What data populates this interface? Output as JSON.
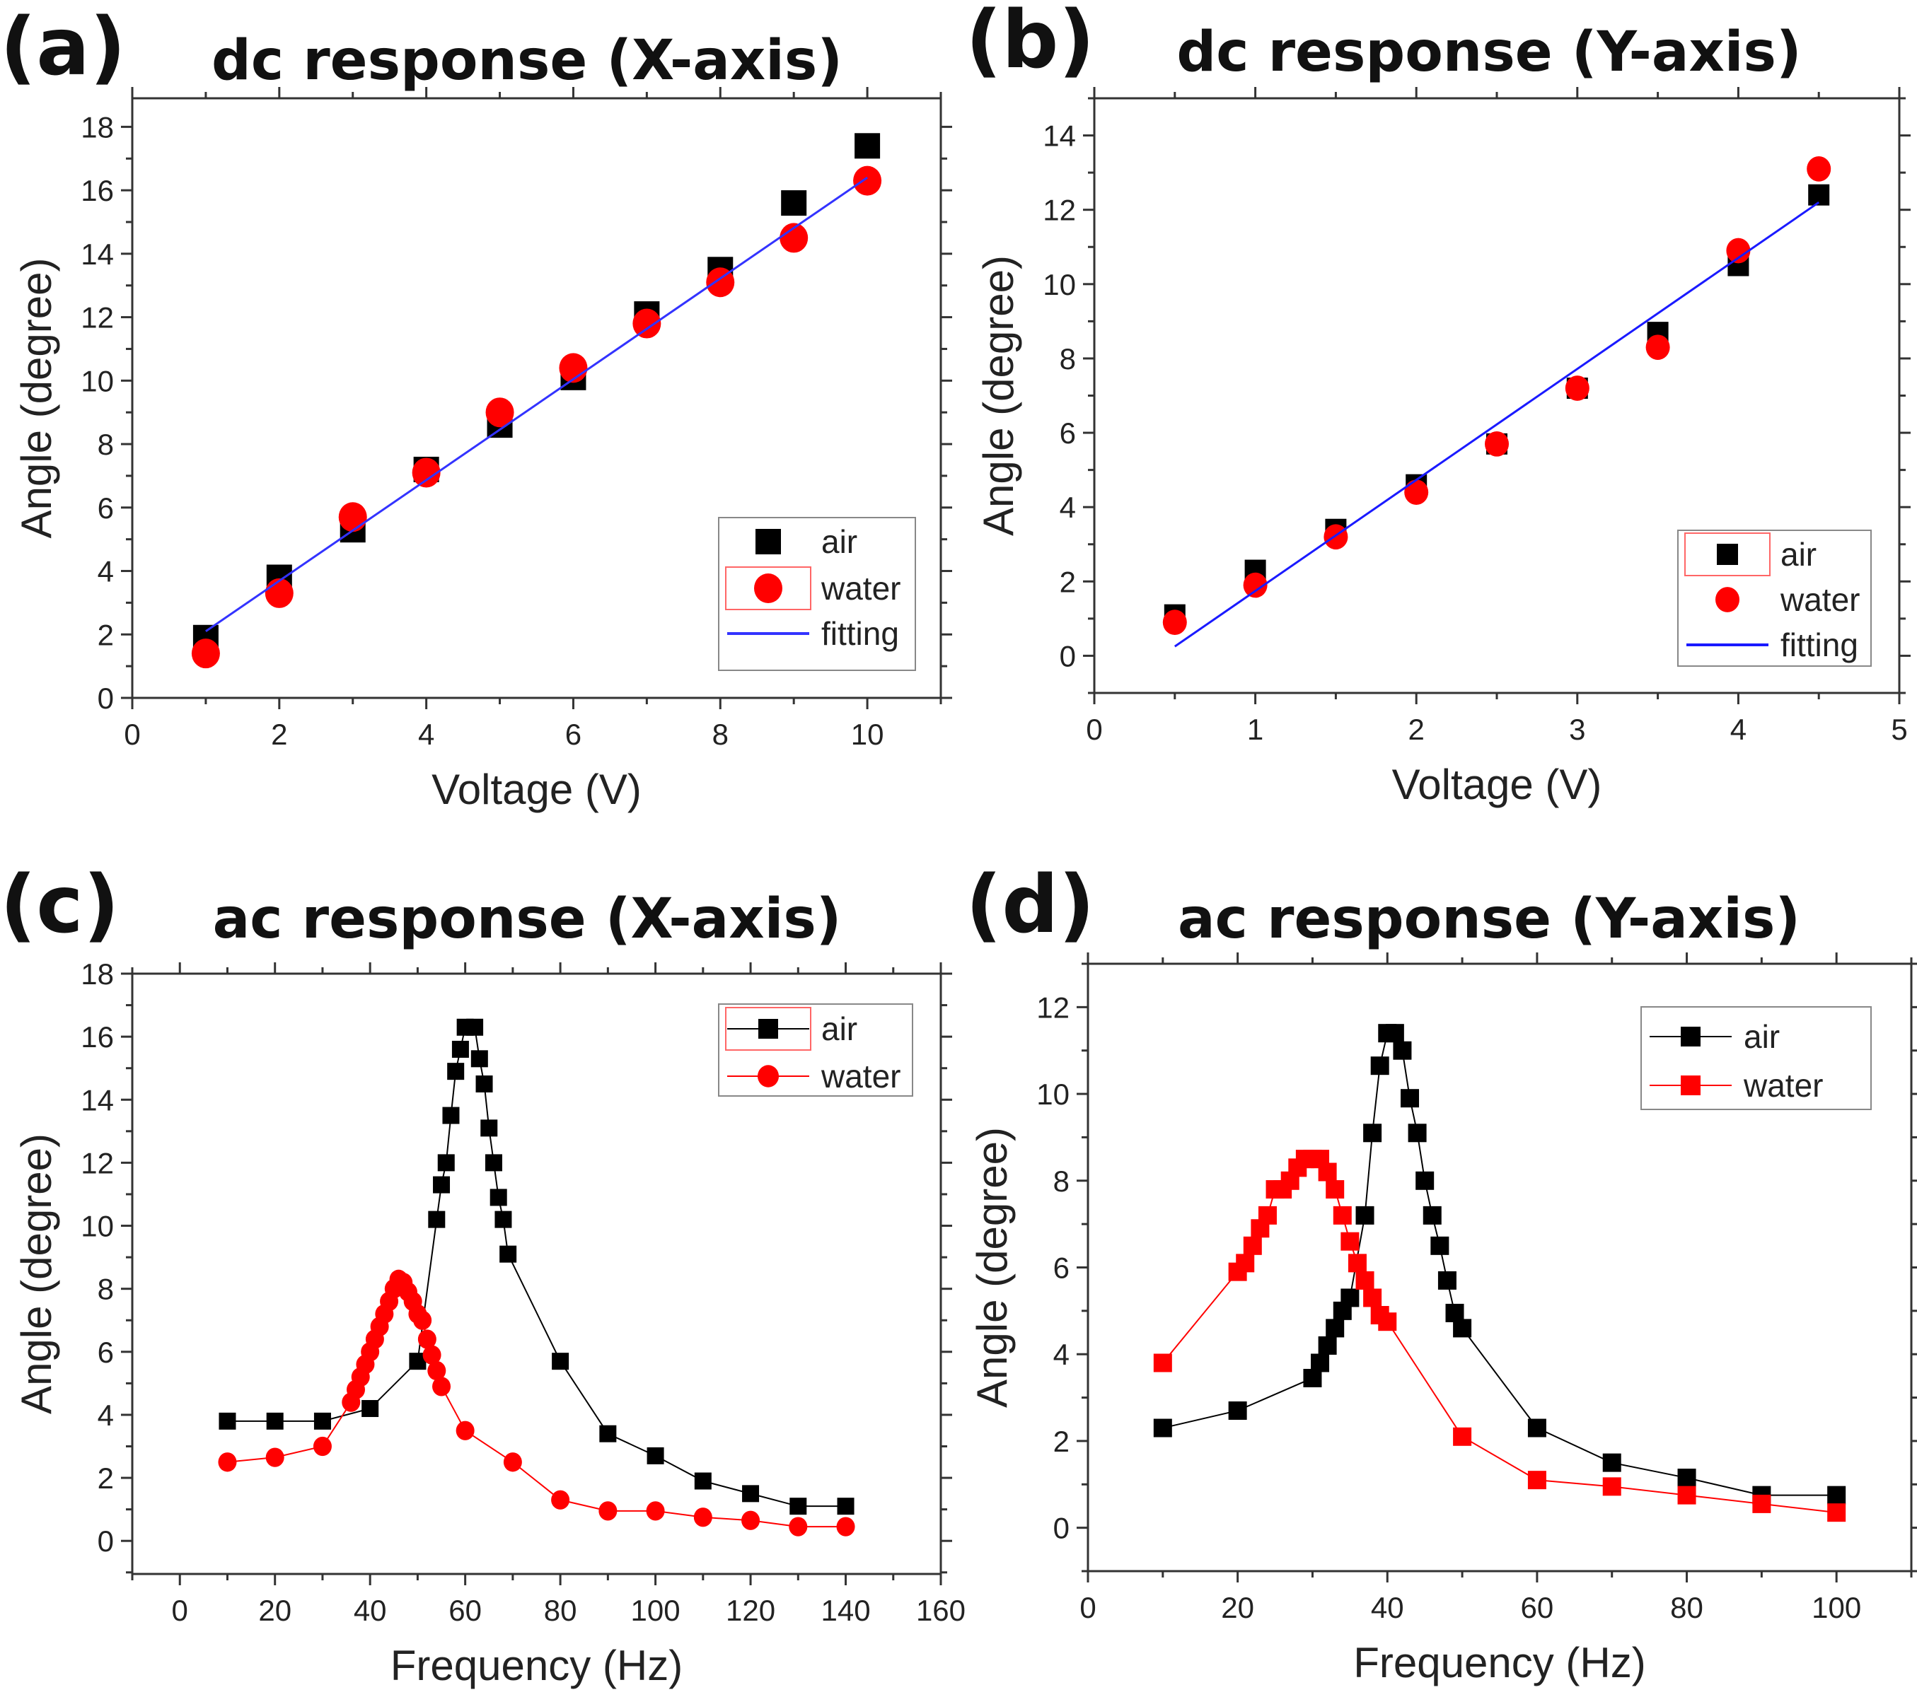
{
  "chart_data": [
    {
      "type": "scatter",
      "label": "(a)",
      "title": "dc response (X-axis)",
      "xlabel": "Voltage (V)",
      "ylabel": "Angle (degree)",
      "xlim": [
        0,
        11
      ],
      "ylim": [
        0,
        18.9
      ],
      "xticks": [
        0,
        2,
        4,
        6,
        8,
        10
      ],
      "yticks": [
        0,
        2,
        4,
        6,
        8,
        10,
        12,
        14,
        16,
        18
      ],
      "legend_position": "bottom-right",
      "series": [
        {
          "name": "air",
          "marker": "square",
          "color": "#000000",
          "line": false,
          "x": [
            1,
            2,
            3,
            4,
            5,
            6,
            7,
            8,
            9,
            10
          ],
          "y": [
            1.9,
            3.8,
            5.3,
            7.2,
            8.6,
            10.1,
            12.1,
            13.5,
            15.6,
            17.4
          ]
        },
        {
          "name": "water",
          "marker": "circle",
          "color": "#ff0000",
          "line": false,
          "x": [
            1,
            2,
            3,
            4,
            5,
            6,
            7,
            8,
            9,
            10
          ],
          "y": [
            1.4,
            3.3,
            5.7,
            7.1,
            9.0,
            10.4,
            11.8,
            13.1,
            14.5,
            16.3
          ]
        },
        {
          "name": "fitting",
          "marker": "none",
          "color": "#3333ff",
          "line": true,
          "x": [
            1,
            10
          ],
          "y": [
            2.1,
            16.4
          ]
        }
      ]
    },
    {
      "type": "scatter",
      "label": "(b)",
      "title": "dc response (Y-axis)",
      "xlabel": "Voltage (V)",
      "ylabel": "Angle (degree)",
      "xlim": [
        0,
        5
      ],
      "ylim": [
        -1,
        15
      ],
      "xticks": [
        0,
        1,
        2,
        3,
        4,
        5
      ],
      "yticks": [
        0,
        2,
        4,
        6,
        8,
        10,
        12,
        14
      ],
      "legend_position": "bottom-right",
      "series": [
        {
          "name": "air",
          "marker": "square",
          "color": "#000000",
          "line": false,
          "x": [
            0.5,
            1,
            1.5,
            2,
            2.5,
            3,
            3.5,
            4,
            4.5
          ],
          "y": [
            1.1,
            2.3,
            3.4,
            4.6,
            5.7,
            7.2,
            8.7,
            10.5,
            12.4
          ]
        },
        {
          "name": "water",
          "marker": "circle",
          "color": "#ff0000",
          "line": false,
          "x": [
            0.5,
            1,
            1.5,
            2,
            2.5,
            3,
            3.5,
            4,
            4.5
          ],
          "y": [
            0.9,
            1.9,
            3.2,
            4.4,
            5.7,
            7.2,
            8.3,
            10.9,
            13.1
          ]
        },
        {
          "name": "fitting",
          "marker": "none",
          "color": "#1a1aff",
          "line": true,
          "x": [
            0.5,
            4.5
          ],
          "y": [
            0.25,
            12.2
          ]
        }
      ]
    },
    {
      "type": "line",
      "label": "(c)",
      "title": "ac response (X-axis)",
      "xlabel": "Frequency (Hz)",
      "ylabel": "Angle (degree)",
      "xlim": [
        -10,
        160
      ],
      "ylim": [
        -1.05,
        18
      ],
      "xticks": [
        0,
        20,
        40,
        60,
        80,
        100,
        120,
        140,
        160
      ],
      "yticks": [
        0,
        2,
        4,
        6,
        8,
        10,
        12,
        14,
        16,
        18
      ],
      "legend_position": "top-right",
      "series": [
        {
          "name": "air",
          "marker": "square",
          "color": "#000000",
          "line": true,
          "x": [
            10,
            20,
            30,
            40,
            50,
            54,
            55,
            56,
            57,
            58,
            59,
            60,
            62,
            63,
            64,
            65,
            66,
            67,
            68,
            69,
            80,
            90,
            100,
            110,
            120,
            130,
            140
          ],
          "y": [
            3.8,
            3.8,
            3.8,
            4.2,
            5.7,
            10.2,
            11.3,
            12.0,
            13.5,
            14.9,
            15.6,
            16.3,
            16.3,
            15.3,
            14.5,
            13.1,
            12.0,
            10.9,
            10.2,
            9.1,
            5.7,
            3.4,
            2.7,
            1.9,
            1.5,
            1.1,
            1.1
          ]
        },
        {
          "name": "water",
          "marker": "circle",
          "color": "#ff0000",
          "line": true,
          "x": [
            10,
            20,
            30,
            36,
            37,
            38,
            39,
            40,
            41,
            42,
            43,
            44,
            45,
            46,
            47,
            48,
            49,
            50,
            51,
            52,
            53,
            54,
            55,
            60,
            70,
            80,
            90,
            100,
            110,
            120,
            130,
            140
          ],
          "y": [
            2.5,
            2.65,
            3.0,
            4.4,
            4.8,
            5.2,
            5.6,
            6.0,
            6.4,
            6.8,
            7.2,
            7.6,
            8.0,
            8.3,
            8.2,
            7.9,
            7.6,
            7.2,
            7.0,
            6.4,
            5.9,
            5.4,
            4.9,
            3.5,
            2.5,
            1.3,
            0.95,
            0.95,
            0.75,
            0.65,
            0.45,
            0.45
          ]
        }
      ]
    },
    {
      "type": "line",
      "label": "(d)",
      "title": "ac response (Y-axis)",
      "xlabel": "Frequency (Hz)",
      "ylabel": "Angle (degree)",
      "xlim": [
        0,
        110
      ],
      "ylim": [
        -1,
        13
      ],
      "xticks": [
        0,
        20,
        40,
        60,
        80,
        100
      ],
      "yticks": [
        0,
        2,
        4,
        6,
        8,
        10,
        12
      ],
      "legend_position": "top-right",
      "series": [
        {
          "name": "air",
          "marker": "square",
          "color": "#000000",
          "line": true,
          "x": [
            10,
            20,
            30,
            31,
            32,
            33,
            34,
            35,
            37,
            38,
            39,
            40,
            41,
            42,
            43,
            44,
            45,
            46,
            47,
            48,
            49,
            50,
            60,
            70,
            80,
            90,
            100
          ],
          "y": [
            2.3,
            2.7,
            3.45,
            3.8,
            4.2,
            4.6,
            5.0,
            5.3,
            7.2,
            9.1,
            10.65,
            11.4,
            11.4,
            11.0,
            9.9,
            9.1,
            8.0,
            7.2,
            6.5,
            5.7,
            4.95,
            4.6,
            2.3,
            1.5,
            1.15,
            0.75,
            0.75
          ]
        },
        {
          "name": "water",
          "marker": "square",
          "color": "#ff0000",
          "line": true,
          "x": [
            10,
            20,
            21,
            22,
            23,
            24,
            25,
            26,
            27,
            28,
            29,
            30,
            31,
            32,
            33,
            34,
            35,
            36,
            37,
            38,
            39,
            40,
            50,
            60,
            70,
            80,
            90,
            100
          ],
          "y": [
            3.8,
            5.9,
            6.1,
            6.5,
            6.9,
            7.2,
            7.8,
            7.8,
            8.0,
            8.3,
            8.5,
            8.5,
            8.5,
            8.2,
            7.8,
            7.2,
            6.6,
            6.1,
            5.7,
            5.3,
            4.9,
            4.75,
            2.1,
            1.1,
            0.95,
            0.75,
            0.55,
            0.35
          ]
        }
      ]
    }
  ]
}
